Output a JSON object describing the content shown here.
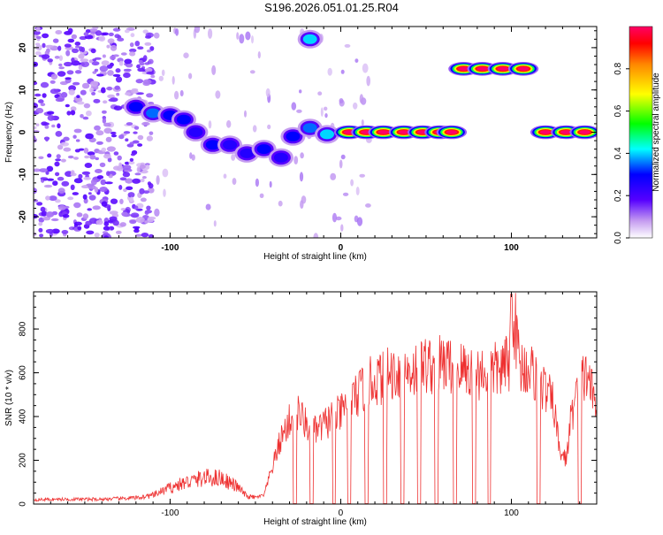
{
  "title": "S196.2026.051.01.25.R04",
  "colors": {
    "snr_line": "#ee3030",
    "axis": "#000000",
    "background": "#ffffff"
  },
  "chart_data": [
    {
      "type": "heatmap",
      "xlabel": "Height of straight line (km)",
      "ylabel": "Frequency (Hz)",
      "xlim": [
        -180,
        150
      ],
      "ylim": [
        -25,
        25
      ],
      "x_ticks": [
        -100,
        0,
        100
      ],
      "x_tick_labels": [
        "-100",
        "0",
        "100"
      ],
      "y_ticks": [
        -20,
        -10,
        0,
        10,
        20
      ],
      "y_tick_labels": [
        "-20",
        "-10",
        "0",
        "10",
        "20"
      ],
      "colorbar": {
        "label": "Normalized spectral amplitude",
        "range": [
          0,
          1
        ],
        "ticks": [
          0.0,
          0.2,
          0.4,
          0.6,
          0.8
        ],
        "tick_labels": [
          "0.0",
          "0.2",
          "0.4",
          "0.6",
          "0.8"
        ]
      },
      "ridge": [
        {
          "x": -120,
          "freq": 6,
          "amp": 0.3
        },
        {
          "x": -110,
          "freq": 4.5,
          "amp": 0.35
        },
        {
          "x": -100,
          "freq": 4,
          "amp": 0.3
        },
        {
          "x": -92,
          "freq": 3,
          "amp": 0.3
        },
        {
          "x": -85,
          "freq": 0,
          "amp": 0.25
        },
        {
          "x": -75,
          "freq": -3,
          "amp": 0.3
        },
        {
          "x": -65,
          "freq": -3,
          "amp": 0.25
        },
        {
          "x": -55,
          "freq": -5,
          "amp": 0.25
        },
        {
          "x": -45,
          "freq": -4,
          "amp": 0.3
        },
        {
          "x": -35,
          "freq": -6,
          "amp": 0.25
        },
        {
          "x": -28,
          "freq": -1,
          "amp": 0.3
        },
        {
          "x": -18,
          "freq": 1,
          "amp": 0.35
        },
        {
          "x": -18,
          "freq": 22,
          "amp": 0.4
        },
        {
          "x": -8,
          "freq": -0.5,
          "amp": 0.4
        },
        {
          "x": 5,
          "freq": 0,
          "amp": 1.0
        },
        {
          "x": 15,
          "freq": 0,
          "amp": 1.0
        },
        {
          "x": 25,
          "freq": 0,
          "amp": 1.0
        },
        {
          "x": 37,
          "freq": 0,
          "amp": 1.0
        },
        {
          "x": 48,
          "freq": 0,
          "amp": 1.0
        },
        {
          "x": 58,
          "freq": 0,
          "amp": 1.0
        },
        {
          "x": 65,
          "freq": 0,
          "amp": 1.0
        },
        {
          "x": 72,
          "freq": 15,
          "amp": 1.0
        },
        {
          "x": 83,
          "freq": 15,
          "amp": 1.0
        },
        {
          "x": 95,
          "freq": 15,
          "amp": 1.0
        },
        {
          "x": 107,
          "freq": 15,
          "amp": 1.0
        },
        {
          "x": 120,
          "freq": 0,
          "amp": 1.0
        },
        {
          "x": 132,
          "freq": 0,
          "amp": 1.0
        },
        {
          "x": 143,
          "freq": 0,
          "amp": 1.0
        }
      ]
    },
    {
      "type": "line",
      "xlabel": "Height of straight line (km)",
      "ylabel": "SNR (10 * v/v)",
      "xlim": [
        -180,
        150
      ],
      "ylim": [
        0,
        970
      ],
      "x_ticks": [
        -100,
        0,
        100
      ],
      "x_tick_labels": [
        "-100",
        "0",
        "100"
      ],
      "y_ticks": [
        0,
        200,
        400,
        600,
        800
      ],
      "y_tick_labels": [
        "0",
        "200",
        "400",
        "600",
        "800"
      ],
      "series": [
        {
          "name": "SNR",
          "x": [
            -180,
            -160,
            -140,
            -120,
            -110,
            -100,
            -90,
            -80,
            -70,
            -60,
            -55,
            -50,
            -45,
            -40,
            -35,
            -30,
            -25,
            -20,
            -15,
            -10,
            -5,
            0,
            5,
            10,
            15,
            20,
            25,
            30,
            35,
            40,
            45,
            50,
            55,
            60,
            65,
            70,
            75,
            80,
            85,
            90,
            95,
            99,
            100,
            105,
            110,
            115,
            120,
            125,
            128,
            132,
            135,
            140,
            145,
            150
          ],
          "y": [
            20,
            22,
            22,
            28,
            40,
            75,
            100,
            120,
            120,
            75,
            35,
            30,
            40,
            170,
            300,
            380,
            420,
            360,
            330,
            360,
            400,
            410,
            470,
            500,
            540,
            570,
            580,
            600,
            610,
            610,
            620,
            640,
            630,
            640,
            630,
            620,
            610,
            600,
            605,
            610,
            620,
            650,
            960,
            630,
            620,
            580,
            520,
            450,
            250,
            200,
            400,
            550,
            600,
            400
          ]
        }
      ]
    }
  ]
}
